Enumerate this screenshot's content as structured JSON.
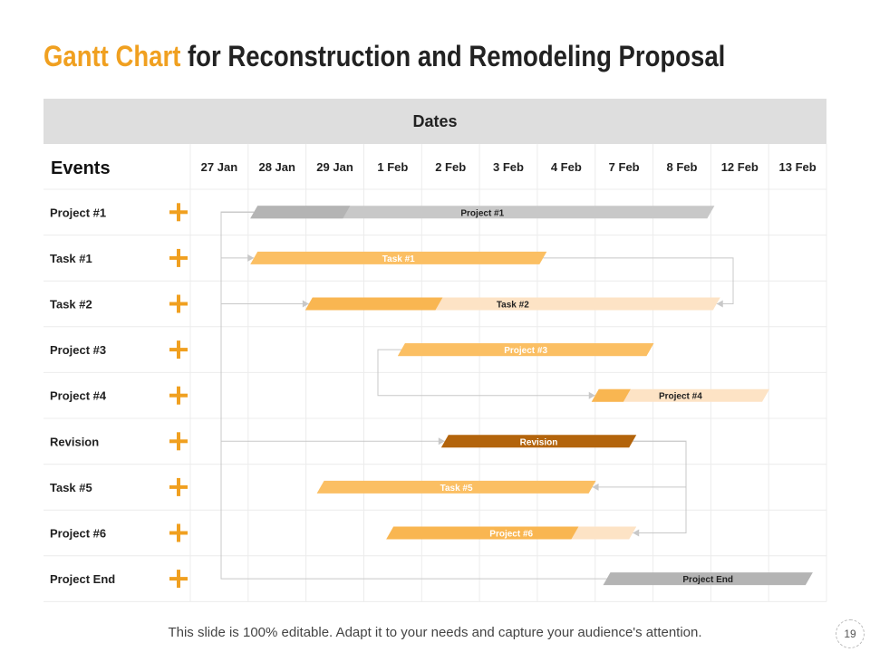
{
  "slide": {
    "title_accent": "Gantt Chart",
    "title_rest": "for Reconstruction and Remodeling Proposal",
    "dates_header": "Dates",
    "footer_text": "This slide is 100% editable. Adapt it to your needs and capture your audience's attention.",
    "page_number": "19"
  },
  "colors": {
    "accent": "#f0a020",
    "grid": "#ececec",
    "header_bg": "#dedede"
  },
  "chart_data": {
    "type": "gantt",
    "title": "Gantt Chart for Reconstruction and Remodeling Proposal",
    "column_header": "Events",
    "dates": [
      "27 Jan",
      "28 Jan",
      "29 Jan",
      "1 Feb",
      "2 Feb",
      "3 Feb",
      "4 Feb",
      "7 Feb",
      "8 Feb",
      "12 Feb",
      "13 Feb"
    ],
    "tasks": [
      {
        "name": "Project #1",
        "label": "Project #1",
        "start": 1.1,
        "end": 9.0,
        "progress": 1.6,
        "color": "#c8c8c8",
        "progress_color": "#b4b4b4",
        "label_color": "#222222"
      },
      {
        "name": "Task #1",
        "label": "Task #1",
        "start": 1.1,
        "end": 6.1,
        "progress": 5.0,
        "color": "#fbbf63",
        "progress_color": "#fbbf63",
        "label_color": "#ffffff"
      },
      {
        "name": "Task #2",
        "label": "Task #2",
        "start": 2.05,
        "end": 9.1,
        "progress": 2.25,
        "color": "#fde3c5",
        "progress_color": "#f9b651",
        "label_color": "#222222"
      },
      {
        "name": "Project #3",
        "label": "Project #3",
        "start": 3.65,
        "end": 7.95,
        "progress": 4.3,
        "color": "#fbbf63",
        "progress_color": "#fbbf63",
        "label_color": "#ffffff"
      },
      {
        "name": "Project #4",
        "label": "Project #4",
        "start": 7.0,
        "end": 9.95,
        "progress": 0.55,
        "color": "#fde3c5",
        "progress_color": "#f9b651",
        "label_color": "#222222"
      },
      {
        "name": "Revision",
        "label": "Revision",
        "start": 4.4,
        "end": 7.65,
        "progress": 3.25,
        "color": "#b3640c",
        "progress_color": "#b3640c",
        "label_color": "#ffffff"
      },
      {
        "name": "Task #5",
        "label": "Task #5",
        "start": 2.25,
        "end": 6.95,
        "progress": 4.7,
        "color": "#fbbf63",
        "progress_color": "#fbbf63",
        "label_color": "#ffffff"
      },
      {
        "name": "Project #6",
        "label": "Project #6",
        "start": 3.45,
        "end": 7.65,
        "progress": 3.2,
        "color": "#fde3c5",
        "progress_color": "#f9b651",
        "label_color": "#ffffff"
      },
      {
        "name": "Project End",
        "label": "Project End",
        "start": 7.2,
        "end": 10.7,
        "progress": 3.5,
        "color": "#b4b4b4",
        "progress_color": "#b4b4b4",
        "label_color": "#222222"
      }
    ],
    "dependencies": [
      {
        "from": "Project #1",
        "to": "Task #1"
      },
      {
        "from": "Project #1",
        "to": "Task #2"
      },
      {
        "from": "Project #1",
        "to": "Revision"
      },
      {
        "from": "Project #1",
        "to": "Project End"
      },
      {
        "from": "Task #1",
        "to": "Task #2"
      },
      {
        "from": "Project #3",
        "to": "Project #4"
      },
      {
        "from": "Revision",
        "to": "Task #5"
      },
      {
        "from": "Revision",
        "to": "Project #6"
      }
    ]
  }
}
